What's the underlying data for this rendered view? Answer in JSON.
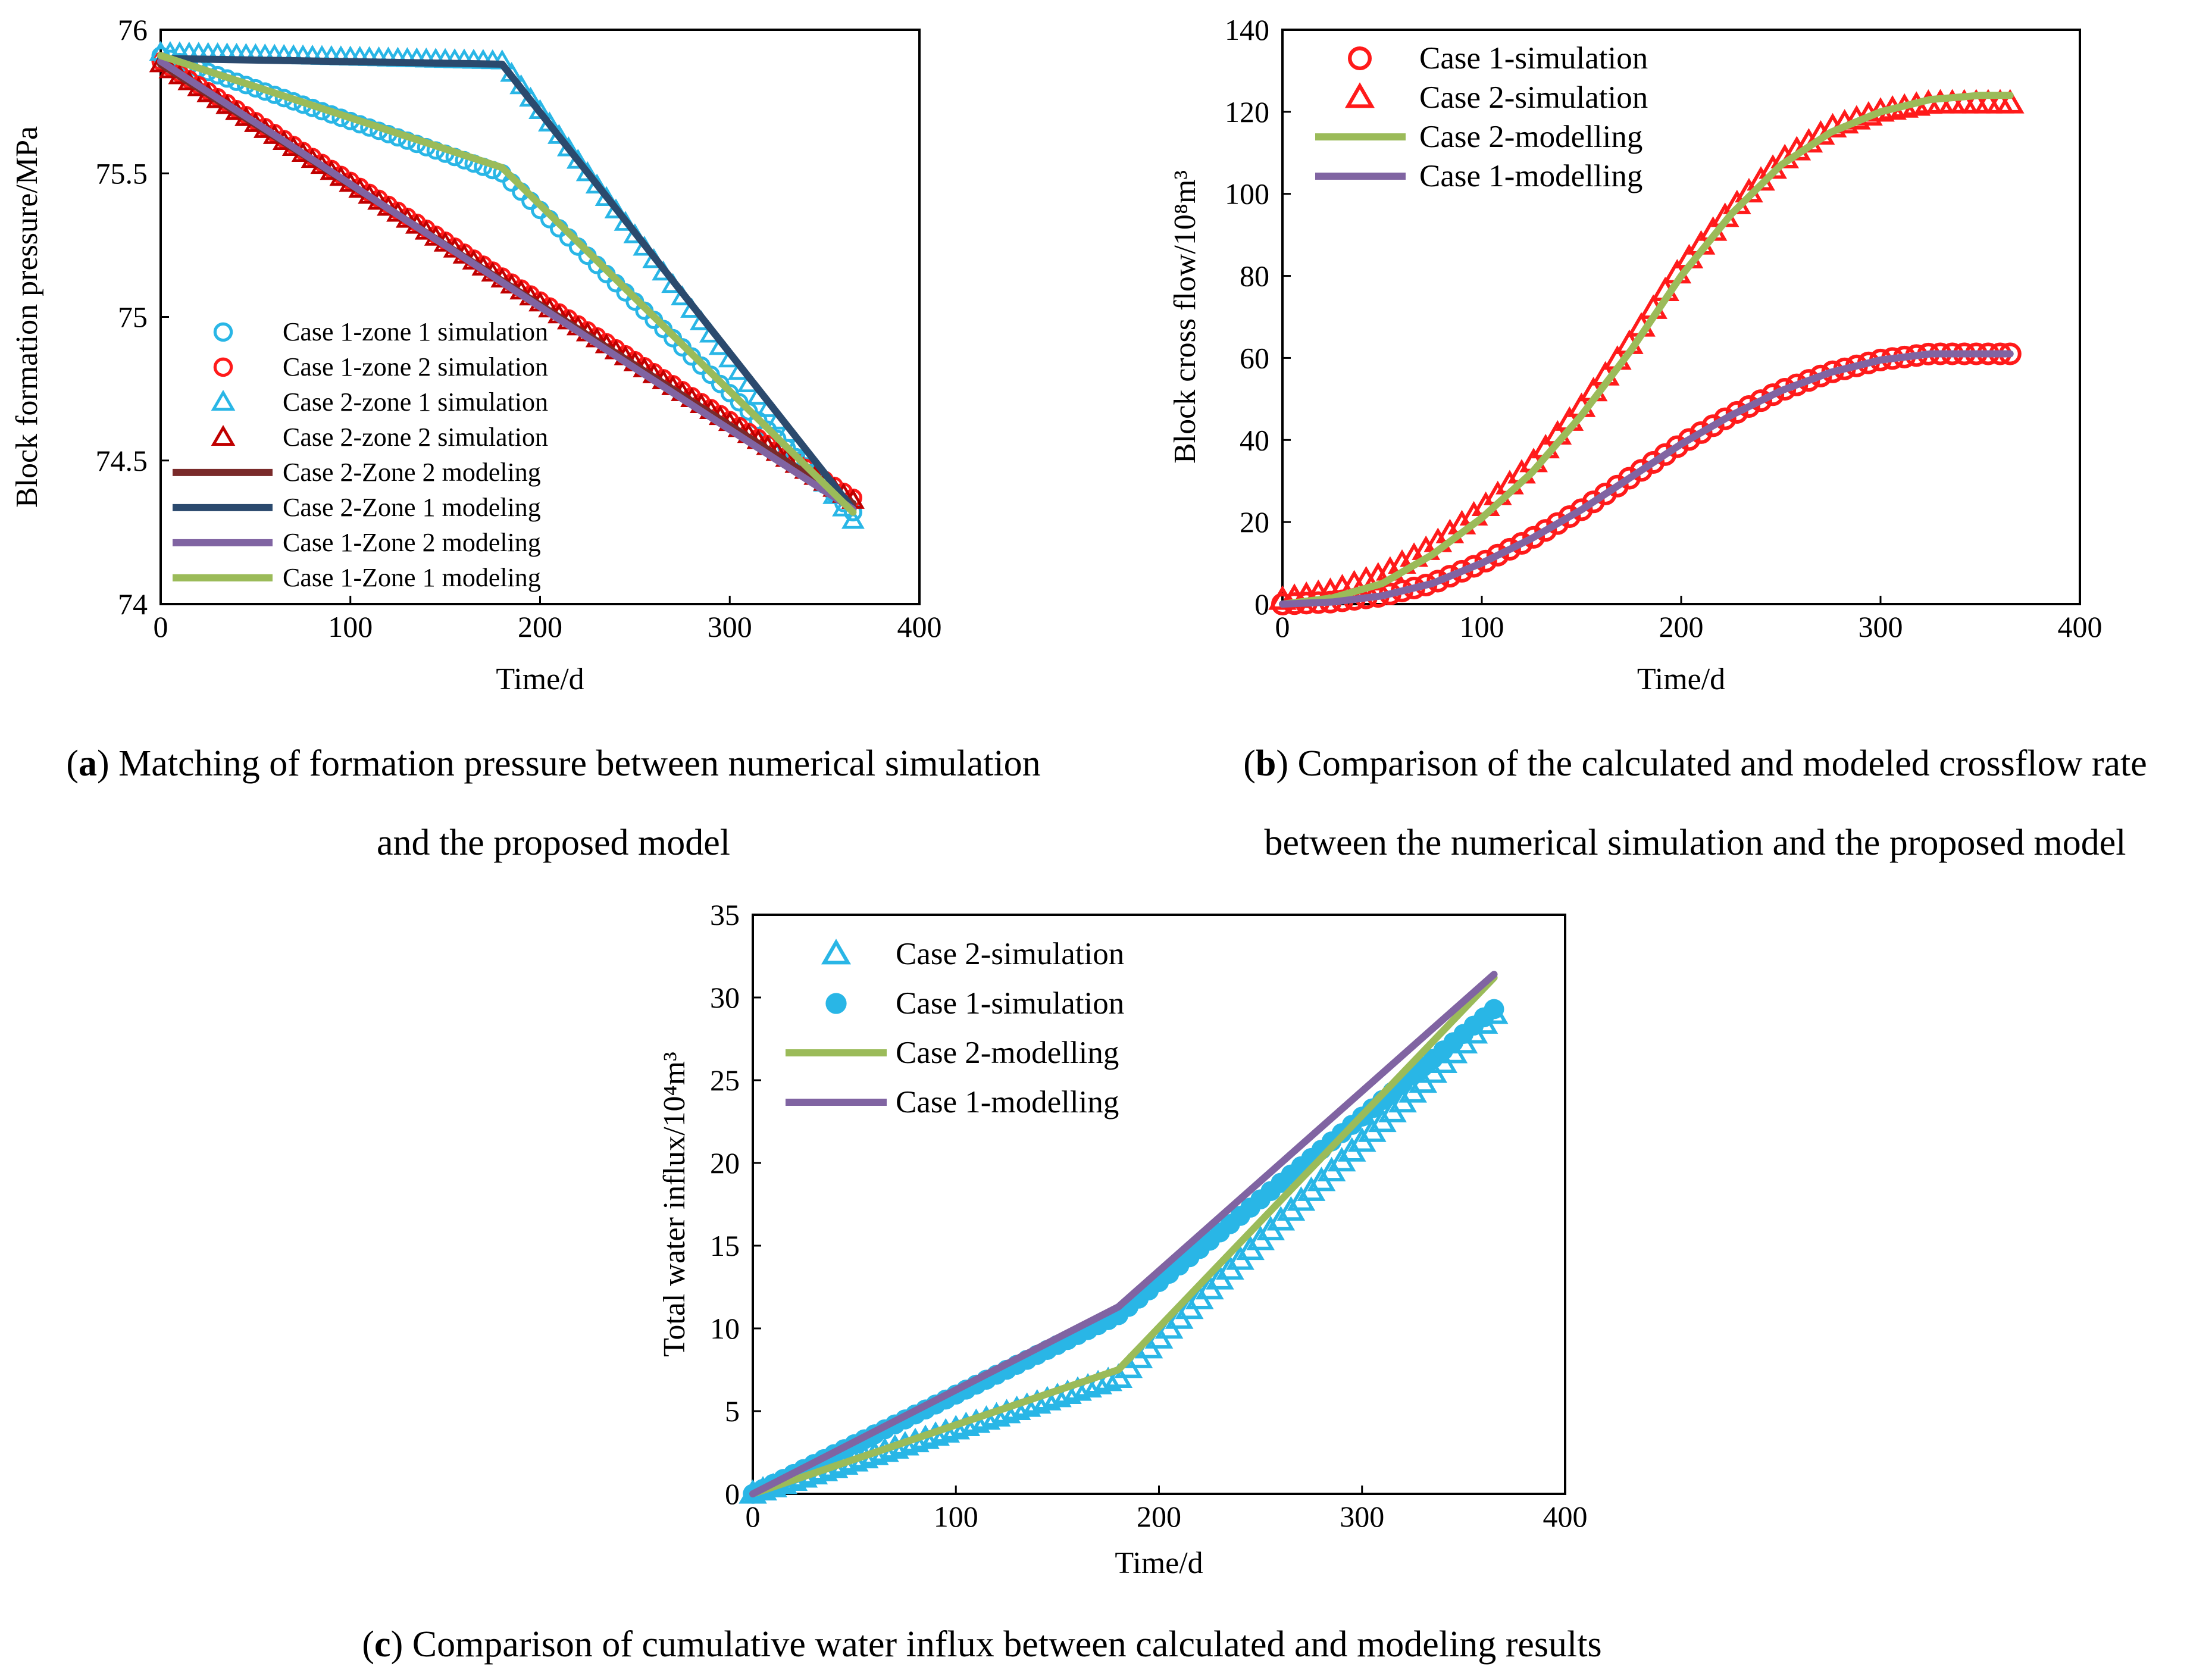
{
  "captions": {
    "a_letter": "a",
    "a_line1": "Matching of formation pressure between numerical simulation",
    "a_line2": "and the proposed model",
    "b_letter": "b",
    "b_line1": "Comparison of the calculated and modeled crossflow rate",
    "b_line2": "between the numerical simulation and the proposed model",
    "c_letter": "c",
    "c_line1": "Comparison of cumulative water influx between calculated and modeling results"
  },
  "chart_data": [
    {
      "id": "a",
      "type": "line",
      "title": "",
      "xlabel": "Time/d",
      "ylabel": "Block formation pressure/MPa",
      "xlim": [
        0,
        400
      ],
      "ylim": [
        74,
        76
      ],
      "xticks": [
        "0",
        "100",
        "200",
        "300",
        "400"
      ],
      "yticks": [
        "74",
        "74.5",
        "75",
        "75.5",
        "76"
      ],
      "legend_position": "lower-left",
      "series": [
        {
          "name": "Case 1-zone 1 simulation",
          "kind": "marker",
          "marker": "circle",
          "color": "#29b6e6",
          "x": [
            0,
            180,
            365
          ],
          "y": [
            75.91,
            75.5,
            74.32
          ]
        },
        {
          "name": "Case 1-zone 2 simulation",
          "kind": "marker",
          "marker": "circle",
          "color": "#ff1a1a",
          "x": [
            0,
            365
          ],
          "y": [
            75.89,
            74.37
          ]
        },
        {
          "name": "Case 2-zone 1 simulation",
          "kind": "marker",
          "marker": "triangle",
          "color": "#29b6e6",
          "x": [
            0,
            180,
            365
          ],
          "y": [
            75.92,
            75.89,
            74.29
          ]
        },
        {
          "name": "Case 2-zone 2 simulation",
          "kind": "marker",
          "marker": "triangle",
          "color": "#c00000",
          "x": [
            0,
            365
          ],
          "y": [
            75.88,
            74.36
          ]
        },
        {
          "name": "Case 2-Zone 2 modeling",
          "kind": "line",
          "color": "#7a2a2a",
          "x": [
            0,
            365
          ],
          "y": [
            75.88,
            74.35
          ]
        },
        {
          "name": "Case 2-Zone 1 modeling",
          "kind": "line",
          "color": "#2b4a6e",
          "x": [
            0,
            180,
            365
          ],
          "y": [
            75.9,
            75.88,
            74.33
          ]
        },
        {
          "name": "Case 1-Zone 2 modeling",
          "kind": "line",
          "color": "#8064a2",
          "x": [
            0,
            365
          ],
          "y": [
            75.89,
            74.33
          ]
        },
        {
          "name": "Case 1-Zone 1 modeling",
          "kind": "line",
          "color": "#9bbb59",
          "x": [
            0,
            180,
            365
          ],
          "y": [
            75.91,
            75.52,
            74.32
          ]
        }
      ]
    },
    {
      "id": "b",
      "type": "line",
      "title": "",
      "xlabel": "Time/d",
      "ylabel": "Block cross flow/10⁸m³",
      "xlim": [
        0,
        400
      ],
      "ylim": [
        0,
        140
      ],
      "xticks": [
        "0",
        "100",
        "200",
        "300",
        "400"
      ],
      "yticks": [
        "0",
        "20",
        "40",
        "60",
        "80",
        "100",
        "120",
        "140"
      ],
      "legend_position": "top-left",
      "series": [
        {
          "name": "Case 1-simulation",
          "kind": "marker",
          "marker": "circle",
          "color": "#ff1a1a",
          "x": [
            0,
            25,
            50,
            75,
            100,
            125,
            150,
            175,
            200,
            225,
            250,
            275,
            300,
            325,
            350,
            365
          ],
          "y": [
            0,
            0.5,
            2,
            5,
            10,
            16,
            23,
            31,
            39,
            46,
            52,
            56.5,
            59.5,
            61,
            61,
            61
          ]
        },
        {
          "name": "Case 2-simulation",
          "kind": "marker",
          "marker": "triangle",
          "color": "#ff1a1a",
          "x": [
            0,
            25,
            50,
            75,
            100,
            125,
            150,
            175,
            200,
            225,
            250,
            275,
            300,
            325,
            350,
            365
          ],
          "y": [
            1,
            3,
            7,
            14,
            23,
            34,
            48,
            64,
            82,
            96,
            108,
            116,
            120,
            122,
            122,
            122
          ]
        },
        {
          "name": "Case 2-modelling",
          "kind": "line",
          "color": "#9bbb59",
          "x": [
            0,
            25,
            50,
            75,
            100,
            125,
            150,
            175,
            200,
            225,
            250,
            275,
            300,
            325,
            350,
            365
          ],
          "y": [
            0,
            1.5,
            5,
            12,
            21,
            32,
            46,
            62,
            80,
            95,
            107,
            115,
            120,
            123,
            124,
            124
          ]
        },
        {
          "name": "Case 1-modelling",
          "kind": "line",
          "color": "#8064a2",
          "x": [
            0,
            25,
            50,
            75,
            100,
            125,
            150,
            175,
            200,
            225,
            250,
            275,
            300,
            325,
            350,
            365
          ],
          "y": [
            0,
            0.5,
            2,
            5,
            10,
            16,
            23,
            31,
            39,
            46,
            52,
            56.5,
            59.5,
            61,
            61,
            61
          ]
        }
      ]
    },
    {
      "id": "c",
      "type": "line",
      "title": "",
      "xlabel": "Time/d",
      "ylabel": "Total water influx/10⁴m³",
      "xlim": [
        0,
        400
      ],
      "ylim": [
        0,
        35
      ],
      "xticks": [
        "0",
        "100",
        "200",
        "300",
        "400"
      ],
      "yticks": [
        "0",
        "5",
        "10",
        "15",
        "20",
        "25",
        "30",
        "35"
      ],
      "legend_position": "top-left",
      "series": [
        {
          "name": "Case 2-simulation",
          "kind": "marker",
          "marker": "triangle",
          "color": "#29b6e6",
          "x": [
            0,
            180,
            365
          ],
          "y": [
            0,
            7,
            29
          ]
        },
        {
          "name": "Case 1-simulation",
          "kind": "marker",
          "marker": "disc",
          "color": "#29b6e6",
          "x": [
            0,
            180,
            365
          ],
          "y": [
            0,
            10.8,
            29.3
          ]
        },
        {
          "name": "Case 2-modelling",
          "kind": "line",
          "color": "#9bbb59",
          "x": [
            0,
            180,
            365
          ],
          "y": [
            0,
            7.5,
            31.2
          ]
        },
        {
          "name": "Case 1-modelling",
          "kind": "line",
          "color": "#8064a2",
          "x": [
            0,
            180,
            365
          ],
          "y": [
            0,
            11.3,
            31.4
          ]
        }
      ]
    }
  ]
}
